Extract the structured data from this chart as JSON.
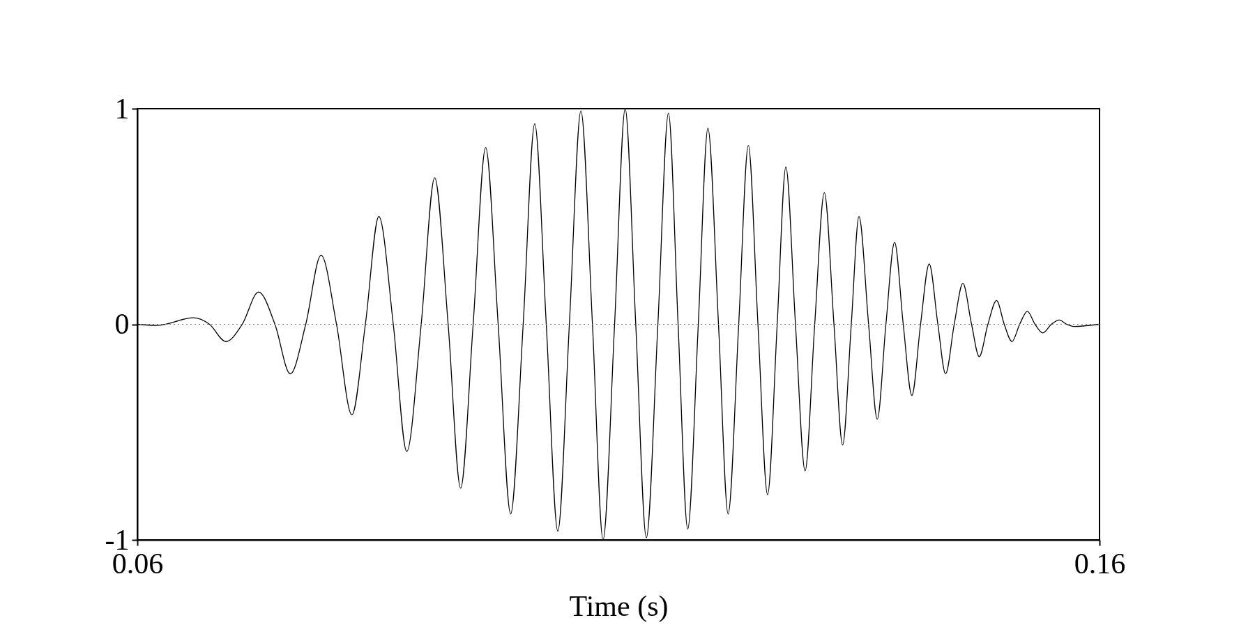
{
  "chart_data": {
    "type": "line",
    "xlabel": "Time (s)",
    "x": [
      0.06,
      0.0621,
      0.0658,
      0.0675,
      0.0692,
      0.0709,
      0.0726,
      0.0743,
      0.0759,
      0.0775,
      0.0791,
      0.0807,
      0.0823,
      0.0837,
      0.0851,
      0.0866,
      0.088,
      0.0895,
      0.0909,
      0.0923,
      0.0936,
      0.0949,
      0.0962,
      0.0975,
      0.0988,
      0.1001,
      0.1013,
      0.1025,
      0.1037,
      0.1049,
      0.1061,
      0.1073,
      0.1084,
      0.1096,
      0.1107,
      0.1118,
      0.1129,
      0.1141,
      0.1152,
      0.1162,
      0.1172,
      0.1183,
      0.1193,
      0.1204,
      0.1214,
      0.1225,
      0.1235,
      0.1245,
      0.1255,
      0.1265,
      0.1274,
      0.1284,
      0.1294,
      0.1304,
      0.1314,
      0.1324,
      0.1333,
      0.1342,
      0.135,
      0.136,
      0.1369,
      0.1378,
      0.1387,
      0.1396,
      0.1405,
      0.1414,
      0.1423,
      0.1432,
      0.144,
      0.1449,
      0.1458,
      0.1467,
      0.1475,
      0.1484,
      0.1493,
      0.1501,
      0.1509,
      0.1517,
      0.1525,
      0.1533,
      0.1541,
      0.155,
      0.1558,
      0.1566,
      0.1573,
      0.16
    ],
    "series": [
      {
        "color": "#000000",
        "values": [
          0,
          -0.005,
          0.03,
          0,
          -0.08,
          0,
          0.15,
          0,
          -0.23,
          0,
          0.32,
          0,
          -0.42,
          0,
          0.5,
          0,
          -0.59,
          0,
          0.68,
          0,
          -0.76,
          0,
          0.82,
          0,
          -0.88,
          0,
          0.93,
          0,
          -0.96,
          0,
          0.99,
          0,
          -1,
          0,
          1,
          0,
          -0.99,
          0,
          0.98,
          0,
          -0.95,
          0,
          0.91,
          0,
          -0.88,
          0,
          0.83,
          0,
          -0.79,
          0,
          0.73,
          0,
          -0.68,
          0,
          0.61,
          0,
          -0.56,
          0,
          0.5,
          0,
          -0.44,
          0,
          0.38,
          0,
          -0.33,
          0,
          0.28,
          0,
          -0.23,
          0,
          0.19,
          0,
          -0.15,
          0,
          0.11,
          0,
          -0.08,
          0,
          0.06,
          0,
          -0.04,
          0,
          0.02,
          0,
          -0.01,
          0
        ]
      }
    ],
    "xlim": [
      0.06,
      0.16
    ],
    "xticks": [
      0.06,
      0.16
    ],
    "ylim": [
      -1,
      1
    ],
    "yticks": [
      -1,
      0,
      1
    ],
    "ref_lines": [
      {
        "axis": "y",
        "value": 0,
        "color": "#808080",
        "line_style": "dotted"
      }
    ],
    "grid": false,
    "legend": false,
    "marker": "none",
    "line_style": "solid"
  }
}
